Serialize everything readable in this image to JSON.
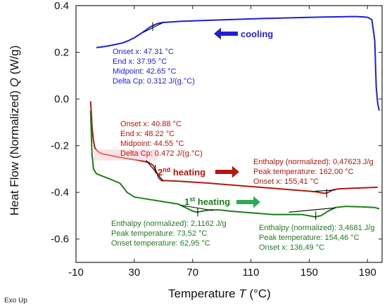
{
  "chart_data": {
    "type": "line",
    "xlabel": "Temperature T (°C)",
    "ylabel": "Heat Flow (Normalized) Q (W/g)",
    "xlim": [
      -10,
      200
    ],
    "ylim": [
      -0.7,
      0.4
    ],
    "xticks": [
      -10,
      30,
      70,
      110,
      150,
      190
    ],
    "yticks": [
      0.4,
      0.2,
      0.0,
      -0.2,
      -0.4,
      -0.6
    ],
    "xticks_labels": [
      "-10",
      "30",
      "70",
      "110",
      "150",
      "190"
    ],
    "yticks_labels": [
      "0.4",
      "0.2",
      "0.0",
      "-0.2",
      "-0.4",
      "-0.6"
    ],
    "grid": false,
    "corner_note": "Exo Up",
    "series": [
      {
        "name": "cooling",
        "color": "#1f1fd6",
        "x": [
          4,
          10,
          16,
          22,
          26,
          30,
          34,
          38,
          40,
          42,
          44,
          46,
          48,
          50,
          60,
          80,
          100,
          120,
          140,
          160,
          170,
          178,
          182,
          186,
          190,
          193,
          195,
          196,
          197,
          198
        ],
        "y": [
          0.22,
          0.225,
          0.232,
          0.24,
          0.25,
          0.262,
          0.278,
          0.295,
          0.305,
          0.312,
          0.318,
          0.323,
          0.326,
          0.328,
          0.332,
          0.337,
          0.341,
          0.345,
          0.348,
          0.351,
          0.352,
          0.353,
          0.353,
          0.352,
          0.35,
          0.34,
          0.25,
          0.05,
          -0.02,
          -0.05
        ]
      },
      {
        "name": "2nd heating",
        "color": "#b01a0d",
        "x": [
          0,
          0.5,
          1,
          2,
          3,
          5,
          8,
          12,
          16,
          20,
          25,
          30,
          35,
          40,
          43,
          45,
          47,
          49,
          52,
          60,
          80,
          100,
          120,
          140,
          150,
          155,
          158,
          161,
          163,
          166,
          170,
          180,
          190,
          197
        ],
        "y": [
          -0.01,
          -0.06,
          -0.12,
          -0.18,
          -0.21,
          -0.225,
          -0.235,
          -0.24,
          -0.245,
          -0.25,
          -0.255,
          -0.26,
          -0.265,
          -0.272,
          -0.285,
          -0.31,
          -0.34,
          -0.35,
          -0.35,
          -0.352,
          -0.36,
          -0.37,
          -0.38,
          -0.39,
          -0.395,
          -0.398,
          -0.402,
          -0.404,
          -0.4,
          -0.39,
          -0.385,
          -0.382,
          -0.38,
          -0.378
        ]
      },
      {
        "name": "1st heating",
        "color": "#1e7d1e",
        "x": [
          0,
          0.5,
          1,
          2,
          4,
          8,
          12,
          16,
          20,
          22,
          25,
          30,
          40,
          50,
          60,
          65,
          70,
          73,
          77,
          82,
          88,
          95,
          105,
          115,
          125,
          135,
          145,
          150,
          154,
          158,
          163,
          168,
          175,
          185,
          195,
          198
        ],
        "y": [
          -0.05,
          -0.15,
          -0.24,
          -0.3,
          -0.32,
          -0.33,
          -0.34,
          -0.35,
          -0.36,
          -0.375,
          -0.4,
          -0.42,
          -0.43,
          -0.44,
          -0.45,
          -0.465,
          -0.48,
          -0.485,
          -0.48,
          -0.475,
          -0.475,
          -0.48,
          -0.485,
          -0.49,
          -0.495,
          -0.495,
          -0.495,
          -0.5,
          -0.505,
          -0.5,
          -0.48,
          -0.465,
          -0.46,
          -0.462,
          -0.465,
          -0.47
        ]
      }
    ],
    "annotations": [
      {
        "id": "cooling",
        "color": "#1f1fd6",
        "lines": [
          "Onset x: 47.31 °C",
          "End x: 37.95 °C",
          "Midpoint: 42.65 °C",
          "Delta Cp: 0.312 J/(g.°C)"
        ]
      },
      {
        "id": "second_tg",
        "color": "#b01a0d",
        "lines": [
          "Onset x: 40.88 °C",
          "End x: 48.22 °C",
          "Midpoint: 44.55 °C",
          "Delta Cp: 0.472 J/(g.°C)"
        ]
      },
      {
        "id": "second_melt",
        "color": "#b01a0d",
        "lines": [
          "Enthalpy (normalized): 0,47623 J/g",
          "Peak temperature: 162,00 °C",
          "Onset x: 155,41 °C"
        ]
      },
      {
        "id": "first_low",
        "color": "#1e7d1e",
        "lines": [
          "Enthalpy (normalized): 2,1162 J/g",
          "Peak temperature: 73,52 °C",
          "Onset temperature: 62,95 °C"
        ]
      },
      {
        "id": "first_high",
        "color": "#1e7d1e",
        "lines": [
          "Enthalpy (normalized): 3,4681 J/g",
          "Peak temperature: 154,46 °C",
          "Onset x: 136,49 °C"
        ]
      }
    ],
    "segment_labels": {
      "cooling": "cooling",
      "second": {
        "base": "2",
        "sup": "nd",
        "rest": " heating"
      },
      "first": {
        "base": "1",
        "sup": "st",
        "rest": " heating"
      }
    },
    "arrows": {
      "cooling": "left",
      "second": "right",
      "first": "right"
    }
  }
}
